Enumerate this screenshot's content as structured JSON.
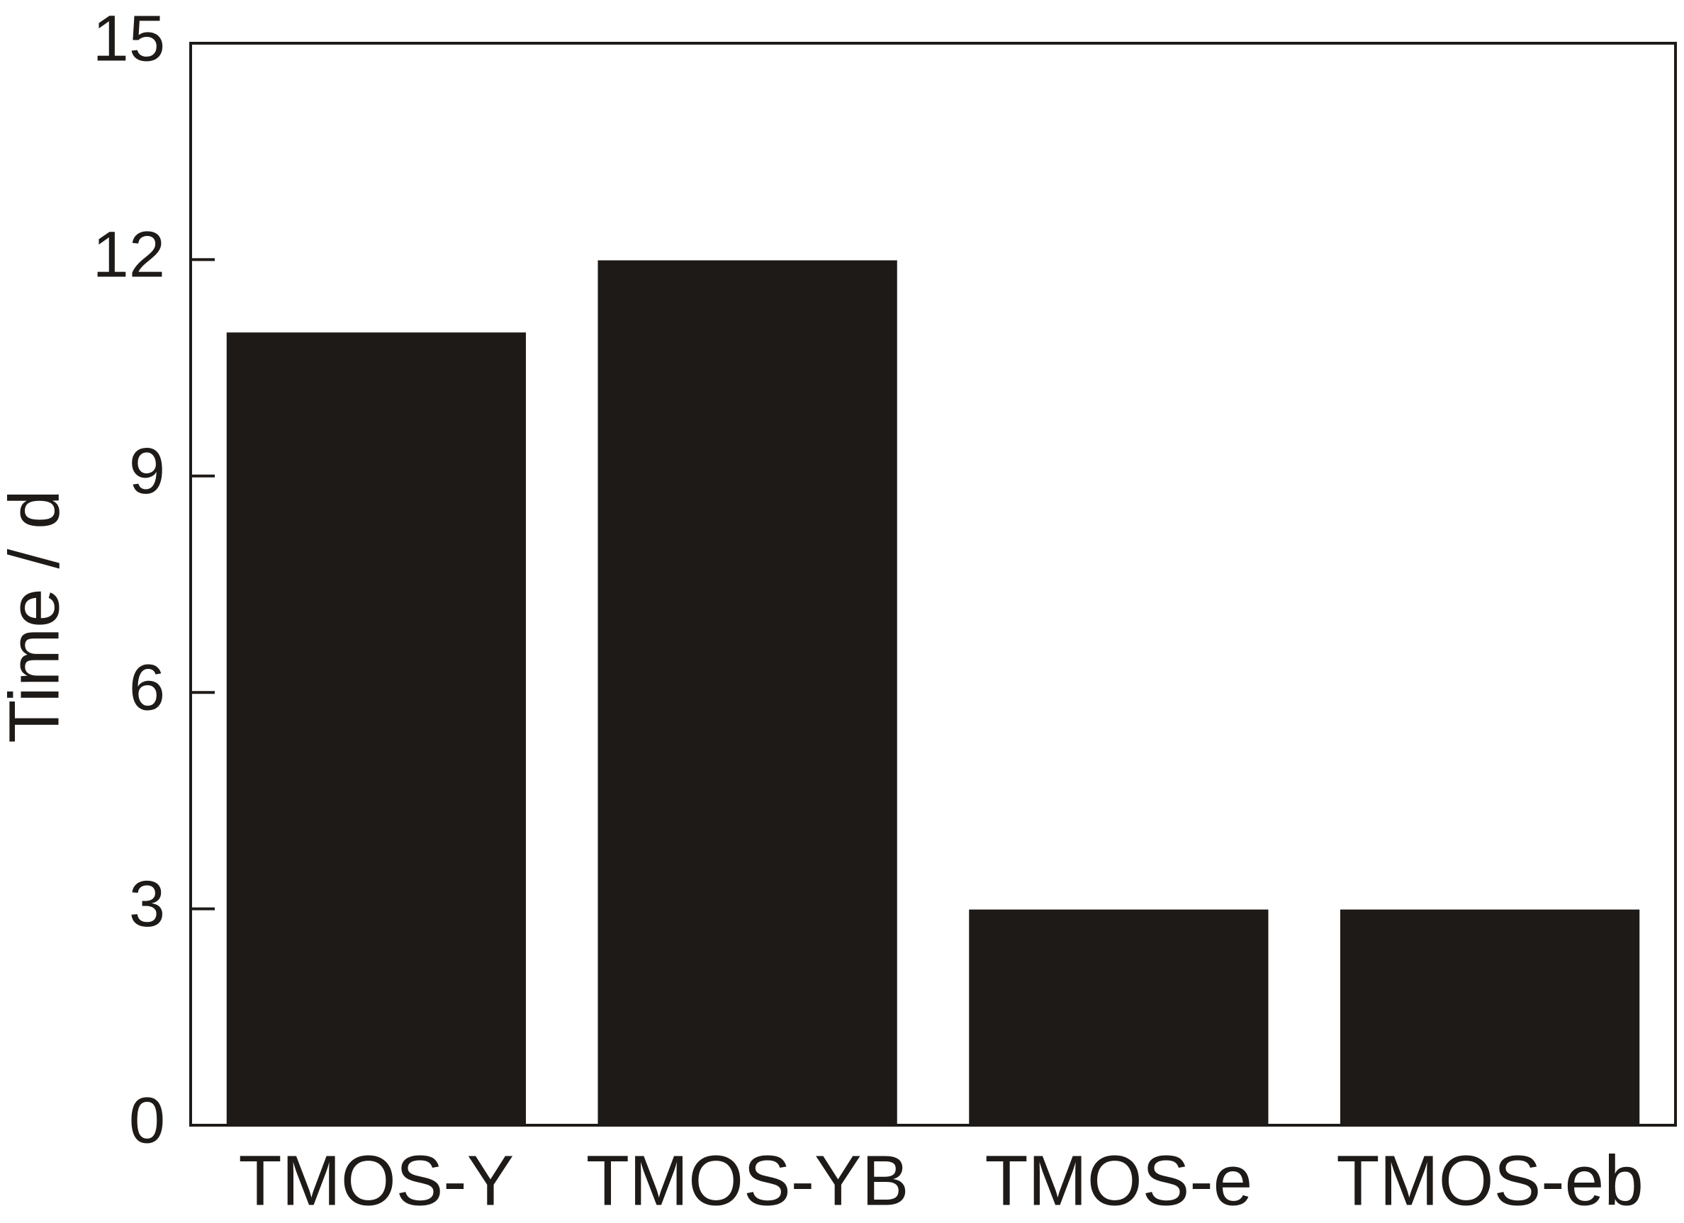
{
  "chart_data": {
    "type": "bar",
    "y_label": "Time / d",
    "categories": [
      "TMOS-Y",
      "TMOS-YB",
      "TMOS-e",
      "TMOS-eb"
    ],
    "values": [
      11,
      12,
      3,
      3
    ],
    "color": "#1e1a17",
    "ylim": [
      0,
      15
    ],
    "yticks": [
      0,
      3,
      6,
      9,
      12,
      15
    ],
    "grid": false
  }
}
